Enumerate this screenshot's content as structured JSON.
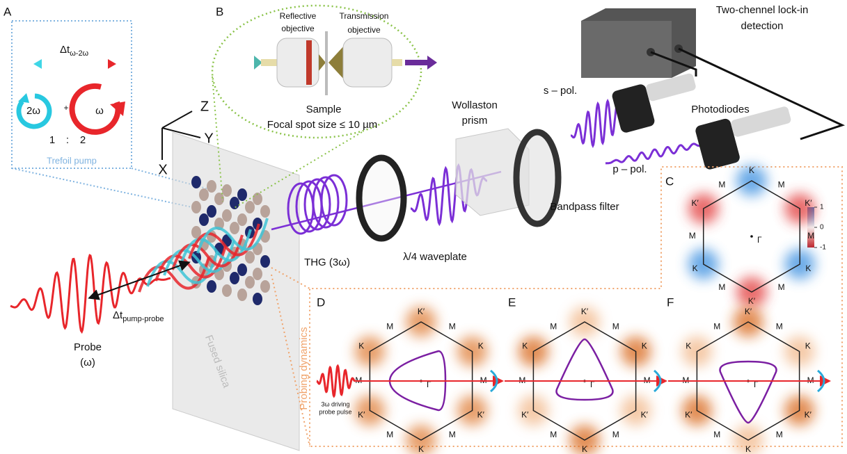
{
  "panel_labels": [
    "A",
    "B",
    "C",
    "D",
    "E",
    "F"
  ],
  "panel_a": {
    "delay_symbol": "Δt",
    "delay_subscript": "ω-2ω",
    "left_label": "2ω",
    "plus": "+",
    "right_label": "ω",
    "ratio": [
      "1",
      ":",
      "2"
    ],
    "caption": "Trefoil pump"
  },
  "axes": {
    "z": "Z",
    "y": "Y",
    "x": "X"
  },
  "panel_b": {
    "reflective": [
      "Reflective",
      "objective"
    ],
    "transmission": [
      "Transmission",
      "objective"
    ],
    "sample": "Sample",
    "spot": "Focal spot size ≤ 10 µm"
  },
  "setup": {
    "lockin": [
      "Two-chennel lock-in",
      "detection"
    ],
    "wollaston": [
      "Wollaston",
      "prism"
    ],
    "s_pol": "s – pol.",
    "p_pol": "p – pol.",
    "photodiodes": "Photodiodes",
    "bandpass": "Bandpass filter",
    "thg": "THG (3ω)",
    "waveplate": "λ/4 waveplate",
    "probe": [
      "Probe",
      "(ω)"
    ],
    "pp_symbol": "Δt",
    "pp_subscript": "pump-probe",
    "fused_silica": "Fused silica"
  },
  "panel_c": {
    "labels": [
      "K",
      "M",
      "K′",
      "M",
      "K",
      "M",
      "K′",
      "M",
      "K",
      "M",
      "K′",
      "M"
    ],
    "center": "Γ",
    "colorbar_ticks": [
      1,
      0,
      -1
    ]
  },
  "panel_def": {
    "side_label": "Probing dynamics",
    "pulse_caption": [
      "3ω driving",
      "probe pulse"
    ],
    "hexagons": [
      {
        "labels": [
          "K′",
          "M",
          "K",
          "M",
          "K′",
          "M",
          "K",
          "M",
          "K′",
          "M",
          "K",
          "M"
        ],
        "center": "Γ"
      },
      {
        "labels": [
          "K′",
          "M",
          "K",
          "M",
          "K′",
          "M",
          "K",
          "M",
          "K′",
          "M",
          "K",
          "M"
        ],
        "center": "Γ"
      },
      {
        "labels": [
          "K′",
          "M",
          "K",
          "M",
          "K′",
          "M",
          "K",
          "M",
          "K′",
          "M",
          "K",
          "M"
        ],
        "center": "Γ"
      }
    ]
  }
}
